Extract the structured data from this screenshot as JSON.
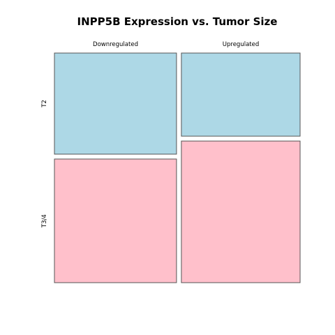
{
  "chart_data": {
    "type": "mosaic",
    "title": "INPP5B Expression vs. Tumor Size",
    "columns": [
      "Downregulated",
      "Upregulated"
    ],
    "rows": [
      "T2",
      "T3/4"
    ],
    "column_proportions": [
      0.507,
      0.493
    ],
    "row_proportions_within_column": {
      "Downregulated": [
        0.45,
        0.55
      ],
      "Upregulated": [
        0.37,
        0.63
      ]
    },
    "colors": {
      "T2": "#add8e6",
      "T3/4": "#ffc0cb"
    },
    "border_color": "#555555"
  }
}
